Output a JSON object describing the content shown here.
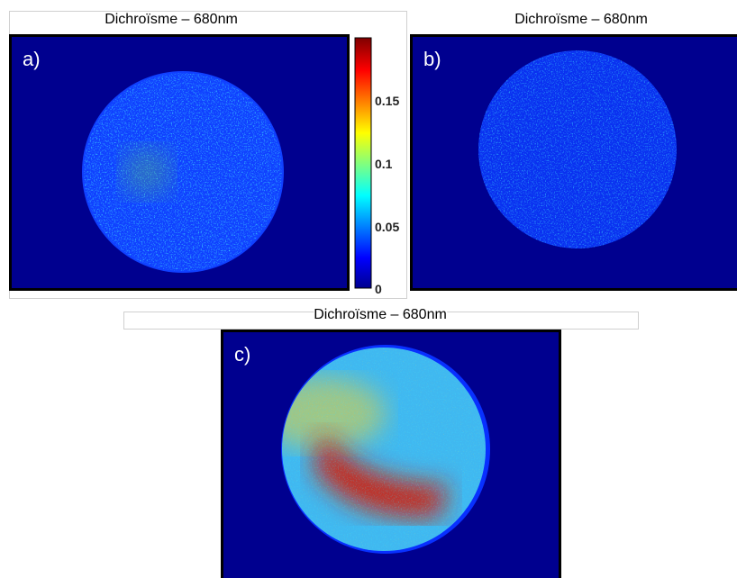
{
  "panels": [
    {
      "title": "Dichroïsme – 680nm",
      "label": "a)"
    },
    {
      "title": "Dichroïsme – 680nm",
      "label": "b)"
    },
    {
      "title": "Dichroïsme – 680nm",
      "label": "c)"
    }
  ],
  "colorbar": {
    "ticks": [
      0.15,
      0.1,
      0.05,
      0
    ]
  }
}
